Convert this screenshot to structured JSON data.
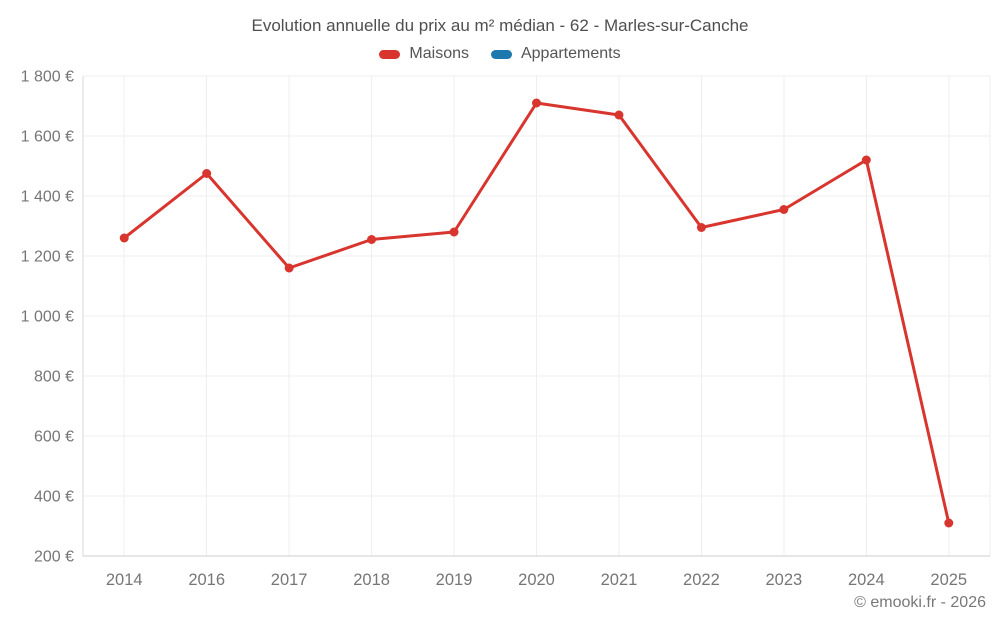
{
  "header": {
    "title": "Evolution annuelle du prix au m² médian - 62 - Marles-sur-Canche"
  },
  "legend": {
    "items": [
      {
        "label": "Maisons",
        "color": "#d8352e"
      },
      {
        "label": "Appartements",
        "color": "#1d78ad"
      }
    ]
  },
  "footer": {
    "credit": "© emooki.fr - 2026"
  },
  "colors": {
    "grid_line": "#efefef",
    "axis_line": "#cccccc",
    "tick_text": "#767676"
  },
  "chart_data": {
    "type": "line",
    "title": "Evolution annuelle du prix au m² médian - 62 - Marles-sur-Canche",
    "categories": [
      "2014",
      "2016",
      "2017",
      "2018",
      "2019",
      "2020",
      "2021",
      "2022",
      "2023",
      "2024",
      "2025"
    ],
    "series": [
      {
        "name": "Maisons",
        "color": "#d8352e",
        "values": [
          1260,
          1475,
          1160,
          1255,
          1280,
          1710,
          1670,
          1295,
          1355,
          1520,
          310
        ]
      },
      {
        "name": "Appartements",
        "color": "#1d78ad",
        "values": []
      }
    ],
    "xlabel": "",
    "ylabel": "",
    "ylim": [
      200,
      1800
    ],
    "ytick_step": 200,
    "ytick_suffix": " €",
    "grid": true,
    "legend_position": "top",
    "marker_radius": 4.5,
    "line_width": 3
  }
}
